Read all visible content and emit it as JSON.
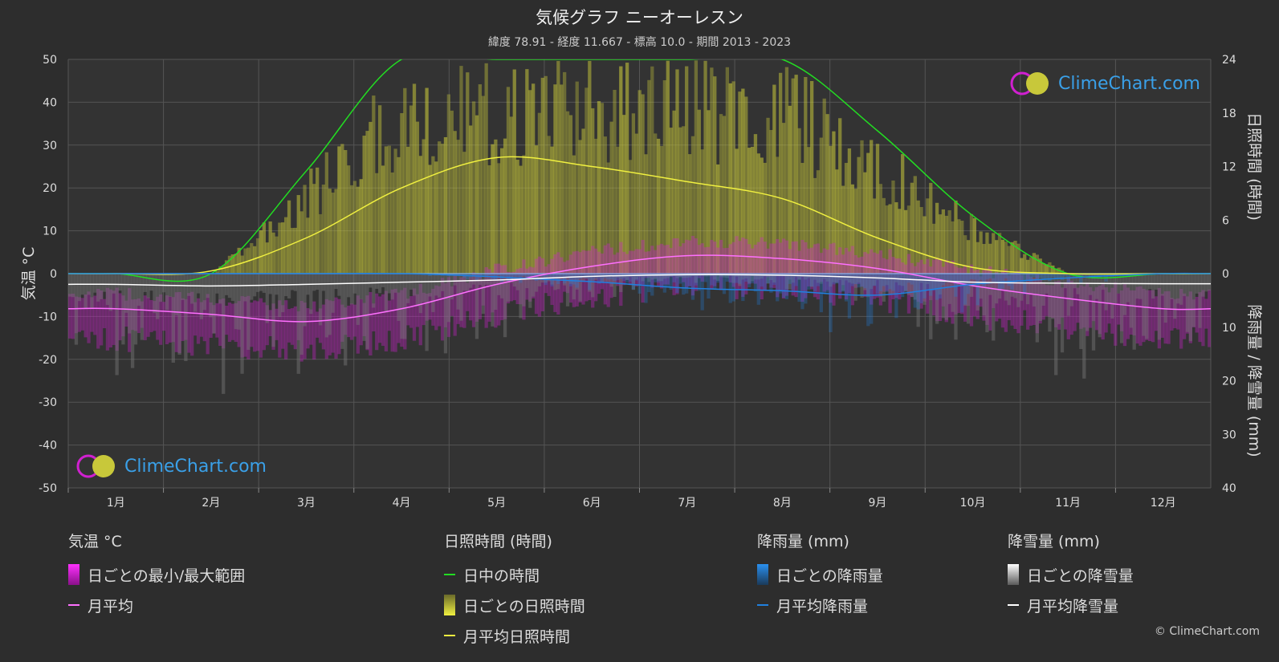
{
  "header": {
    "title": "気候グラフ ニーオーレスン",
    "subtitle": "緯度 78.91 - 経度 11.667 - 標高 10.0 - 期間 2013 - 2023"
  },
  "logo": {
    "text": "ClimeChart.com"
  },
  "copyright": "© ClimeChart.com",
  "legend": {
    "temp": {
      "head": "気温 °C",
      "range": "日ごとの最小/最大範囲",
      "avg": "月平均"
    },
    "sun": {
      "head": "日照時間 (時間)",
      "daylight": "日中の時間",
      "daily": "日ごとの日照時間",
      "avg": "月平均日照時間"
    },
    "rain": {
      "head": "降雨量 (mm)",
      "daily": "日ごとの降雨量",
      "avg": "月平均降雨量"
    },
    "snow": {
      "head": "降雪量 (mm)",
      "daily": "日ごとの降雪量",
      "avg": "月平均降雪量"
    }
  },
  "colors": {
    "background": "#2d2d2d",
    "temp_range": "#d020d0",
    "temp_avg": "#ff70ff",
    "daylight": "#22dd22",
    "sunshine": "#c8c83a",
    "sunshine_avg": "#f0f040",
    "rain": "#2080e0",
    "snow": "#ffffff"
  },
  "chart_data": {
    "type": "line",
    "categories": [
      "1月",
      "2月",
      "3月",
      "4月",
      "5月",
      "6月",
      "7月",
      "8月",
      "9月",
      "10月",
      "11月",
      "12月"
    ],
    "axes": {
      "left": {
        "label": "気温 °C",
        "ticks": [
          "50",
          "40",
          "30",
          "20",
          "10",
          "0",
          "-10",
          "-20",
          "-30",
          "-40",
          "-50"
        ],
        "range": [
          -50,
          50
        ]
      },
      "right_top": {
        "label": "日照時間 (時間)",
        "ticks": [
          "24",
          "18",
          "12",
          "6",
          "0"
        ],
        "range": [
          0,
          24
        ]
      },
      "right_bottom": {
        "label": "降雨量 / 降雪量 (mm)",
        "ticks": [
          "10",
          "20",
          "30",
          "40"
        ],
        "range": [
          0,
          40
        ]
      }
    },
    "grid": true,
    "series": [
      {
        "name": "月平均",
        "unit": "°C",
        "values": [
          -8.2,
          -9.5,
          -11.2,
          -8.2,
          -2.5,
          1.7,
          4.2,
          3.5,
          1.2,
          -2.8,
          -5.8,
          -8.2
        ]
      },
      {
        "name": "日中の時間",
        "unit": "時間",
        "values": [
          0,
          0,
          11.5,
          24,
          24,
          24,
          24,
          24,
          16,
          6.5,
          0,
          0
        ]
      },
      {
        "name": "月平均日照時間",
        "unit": "時間",
        "values": [
          0,
          0.3,
          4,
          9.6,
          13,
          12,
          10.3,
          8.4,
          4,
          0.7,
          0,
          0
        ]
      },
      {
        "name": "月平均降雨量",
        "unit": "mm",
        "values": [
          0,
          0,
          0,
          0,
          0.6,
          1.5,
          2.7,
          3.2,
          4.0,
          2.0,
          0.8,
          0
        ]
      },
      {
        "name": "月平均降雪量",
        "unit": "mm",
        "values": [
          2.0,
          2.3,
          2.0,
          1.6,
          1.2,
          0.5,
          0.2,
          0.3,
          0.8,
          1.6,
          1.8,
          1.9
        ]
      }
    ]
  }
}
